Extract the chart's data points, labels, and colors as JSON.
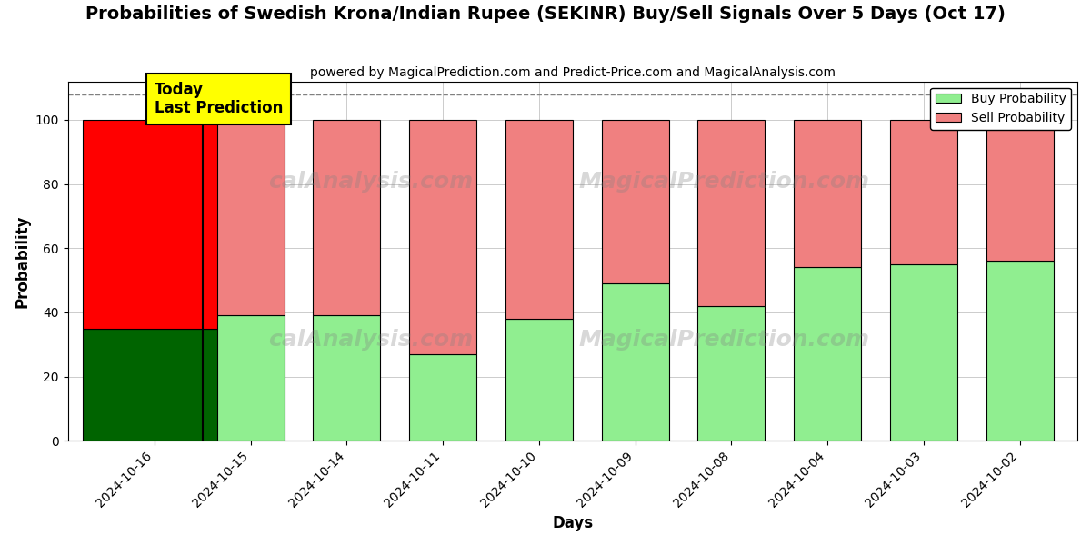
{
  "title": "Probabilities of Swedish Krona/Indian Rupee (SEKINR) Buy/Sell Signals Over 5 Days (Oct 17)",
  "subtitle": "powered by MagicalPrediction.com and Predict-Price.com and MagicalAnalysis.com",
  "xlabel": "Days",
  "ylabel": "Probability",
  "categories": [
    "2024-10-16",
    "2024-10-15",
    "2024-10-14",
    "2024-10-11",
    "2024-10-10",
    "2024-10-09",
    "2024-10-08",
    "2024-10-04",
    "2024-10-03",
    "2024-10-02"
  ],
  "buy_values": [
    35,
    39,
    39,
    27,
    38,
    49,
    42,
    54,
    55,
    56
  ],
  "sell_values": [
    65,
    61,
    61,
    73,
    62,
    51,
    58,
    46,
    45,
    44
  ],
  "buy_colors": [
    "#006400",
    "#90EE90",
    "#90EE90",
    "#90EE90",
    "#90EE90",
    "#90EE90",
    "#90EE90",
    "#90EE90",
    "#90EE90",
    "#90EE90"
  ],
  "sell_colors": [
    "#FF0000",
    "#F08080",
    "#F08080",
    "#F08080",
    "#F08080",
    "#F08080",
    "#F08080",
    "#F08080",
    "#F08080",
    "#F08080"
  ],
  "today_annotation": "Today\nLast Prediction",
  "ylim": [
    0,
    112
  ],
  "yticks": [
    0,
    20,
    40,
    60,
    80,
    100
  ],
  "legend_buy_label": "Buy Probability",
  "legend_sell_label": "Sell Probability",
  "legend_buy_color": "#90EE90",
  "legend_sell_color": "#F08080",
  "dashed_line_y": 108,
  "bar_edge_color": "#000000",
  "bar_linewidth": 0.8,
  "background_color": "#ffffff",
  "grid_color": "#cccccc",
  "today_bar_width": 1.5,
  "other_bar_width": 0.7
}
